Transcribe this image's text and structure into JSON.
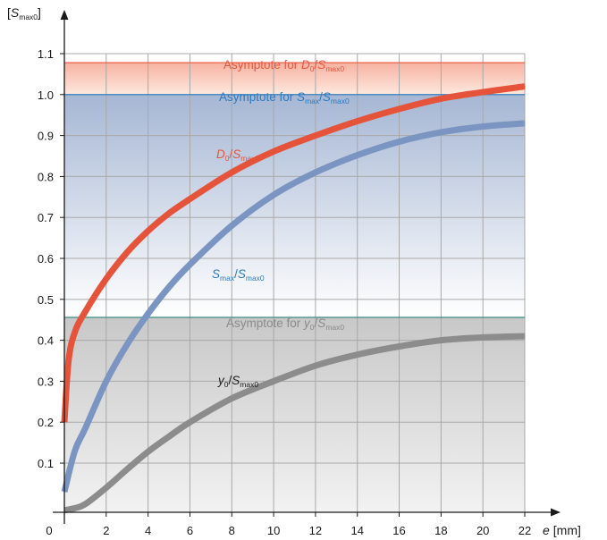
{
  "chart_data": {
    "type": "line",
    "x_axis": {
      "label_var": "e",
      "unit": "[mm]",
      "range": [
        0,
        22
      ],
      "ticks": [
        "0",
        "2",
        "4",
        "6",
        "8",
        "10",
        "12",
        "14",
        "16",
        "18",
        "20",
        "22"
      ]
    },
    "y_axis": {
      "label_open": "[",
      "label_var": "S",
      "label_sub": "max0",
      "label_close": "]",
      "range": [
        -0.02,
        1.15
      ],
      "ticks": [
        "0.1",
        "0.2",
        "0.3",
        "0.4",
        "0.5",
        "0.6",
        "0.7",
        "0.8",
        "0.9",
        "1.0",
        "1.1"
      ]
    },
    "grid": true,
    "asymptotes": [
      {
        "y": 1.078,
        "color": "#e8563d",
        "label": {
          "pre": "Asymptote for ",
          "v1": "D",
          "s1": "0",
          "slash": "/",
          "v2": "S",
          "s2": "max0"
        }
      },
      {
        "y": 1.0,
        "color": "#2b7bc0",
        "label": {
          "pre": "Asymptote for ",
          "v1": "S",
          "s1": "max",
          "slash": "/",
          "v2": "S",
          "s2": "max0"
        }
      },
      {
        "y": 0.456,
        "color": "#3d8a80",
        "label": {
          "pre": "Asymptote for ",
          "v1": "y",
          "s1": "0",
          "slash": "/",
          "v2": "S",
          "s2": "max0"
        }
      }
    ],
    "bands": [
      {
        "from": 1.0,
        "to": 1.078,
        "top_color": "#f7b2a1",
        "bottom_color": "#fde8de"
      },
      {
        "from": 0.456,
        "to": 1.0,
        "top_color": "#a6b7d4",
        "bottom_color": "#ffffff"
      },
      {
        "from": -0.02,
        "to": 0.456,
        "top_color": "#c8c8c8",
        "bottom_color": "#f2f2f2"
      }
    ],
    "series": [
      {
        "color": "#e5533a",
        "label": {
          "v1": "D",
          "s1": "0",
          "slash": "/",
          "v2": "S",
          "s2": "max0"
        },
        "x": [
          0,
          0.2,
          0.5,
          1,
          2,
          3,
          4,
          5,
          6,
          8,
          10,
          12,
          14,
          16,
          18,
          20,
          22
        ],
        "y": [
          0.2,
          0.35,
          0.42,
          0.47,
          0.55,
          0.615,
          0.667,
          0.71,
          0.745,
          0.81,
          0.861,
          0.9,
          0.935,
          0.965,
          0.99,
          1.006,
          1.02
        ]
      },
      {
        "color": "#7b95c2",
        "label": {
          "v1": "S",
          "s1": "max",
          "slash": "/",
          "v2": "S",
          "s2": "max0"
        },
        "x": [
          0,
          0.5,
          1,
          2,
          3,
          4,
          5,
          6,
          8,
          10,
          12,
          14,
          16,
          18,
          20,
          22
        ],
        "y": [
          0.03,
          0.13,
          0.185,
          0.3,
          0.39,
          0.465,
          0.53,
          0.585,
          0.68,
          0.755,
          0.81,
          0.852,
          0.885,
          0.908,
          0.922,
          0.93
        ]
      },
      {
        "color": "#8c8c8c",
        "label": {
          "v1": "y",
          "s1": "0",
          "slash": "/",
          "v2": "S",
          "s2": "max0"
        },
        "x": [
          0,
          0.5,
          1,
          2,
          3,
          4,
          5,
          6,
          8,
          10,
          12,
          14,
          16,
          18,
          20,
          22
        ],
        "y": [
          -0.015,
          -0.01,
          0.0,
          0.04,
          0.085,
          0.128,
          0.165,
          0.2,
          0.258,
          0.3,
          0.338,
          0.365,
          0.385,
          0.4,
          0.407,
          0.41
        ]
      }
    ]
  }
}
